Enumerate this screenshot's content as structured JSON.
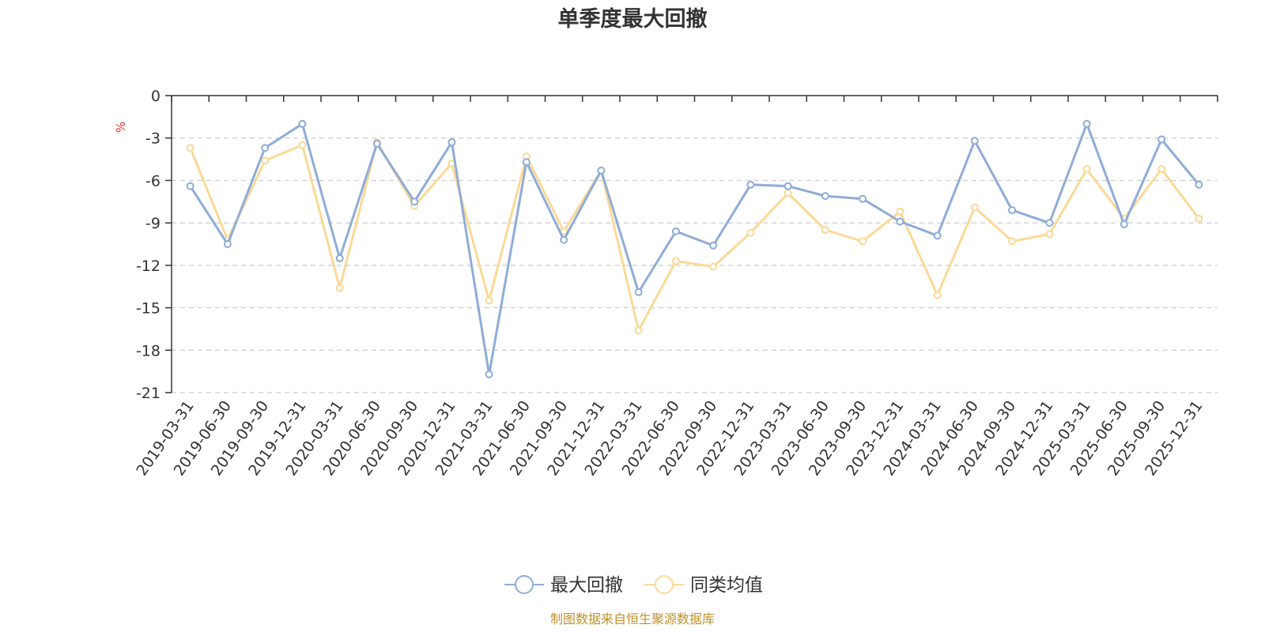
{
  "source_note": "制图数据来自恒生聚源数据库",
  "colors": {
    "series_max_drawdown": "#8eacd8",
    "series_peer_avg": "#fbd996",
    "unit": "#e8312e",
    "grid": "#cccccc",
    "axis": "#333333"
  },
  "chart_data": {
    "type": "line",
    "title": "单季度最大回撤",
    "ylabel": "%",
    "xlabel": "",
    "ylim": [
      -21,
      0
    ],
    "yticks": [
      0,
      -3,
      -6,
      -9,
      -12,
      -15,
      -18,
      -21
    ],
    "grid": "horizontal dashed",
    "legend_position": "bottom-center",
    "categories": [
      "2019-03-31",
      "2019-06-30",
      "2019-09-30",
      "2019-12-31",
      "2020-03-31",
      "2020-06-30",
      "2020-09-30",
      "2020-12-31",
      "2021-03-31",
      "2021-06-30",
      "2021-09-30",
      "2021-12-31",
      "2022-03-31",
      "2022-06-30",
      "2022-09-30",
      "2022-12-31",
      "2023-03-31",
      "2023-06-30",
      "2023-09-30",
      "2023-12-31",
      "2024-03-31",
      "2024-06-30",
      "2024-09-30",
      "2024-12-31",
      "2025-03-31",
      "2025-06-30",
      "2025-09-30",
      "2025-12-31"
    ],
    "series": [
      {
        "name": "最大回撤",
        "values": [
          -6.4,
          -10.5,
          -3.7,
          -2.0,
          -11.5,
          -3.4,
          -7.5,
          -3.3,
          -19.7,
          -4.7,
          -10.2,
          -5.3,
          -13.9,
          -9.6,
          -10.6,
          -6.3,
          -6.4,
          -7.1,
          -7.3,
          -8.9,
          -9.9,
          -3.2,
          -8.1,
          -9.0,
          -2.0,
          -9.1,
          -3.1,
          -6.3
        ]
      },
      {
        "name": "同类均值",
        "values": [
          -3.7,
          -10.2,
          -4.6,
          -3.5,
          -13.6,
          -3.3,
          -7.8,
          -4.8,
          -14.5,
          -4.3,
          -9.6,
          -5.3,
          -16.6,
          -11.7,
          -12.1,
          -9.7,
          -6.9,
          -9.5,
          -10.3,
          -8.2,
          -14.1,
          -7.9,
          -10.3,
          -9.8,
          -5.2,
          -8.7,
          -5.2,
          -8.7
        ]
      }
    ]
  }
}
